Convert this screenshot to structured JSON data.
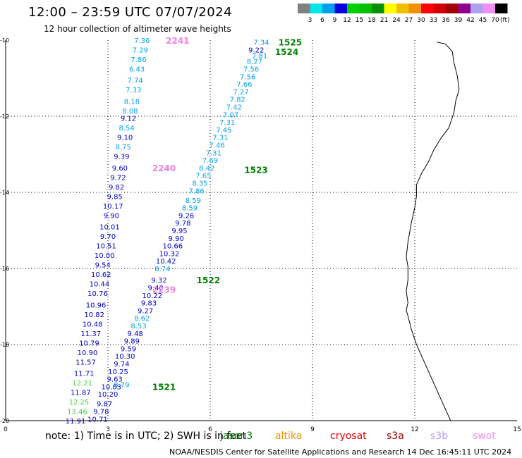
{
  "header": {
    "title": "12:00 – 23:59 UTC 07/07/2024",
    "subtitle": "12 hour collection of altimeter wave heights"
  },
  "colorbar": {
    "unit": "(ft)",
    "levels": [
      {
        "label": "3",
        "color": "#808080"
      },
      {
        "label": "6",
        "color": "#00e6e6"
      },
      {
        "label": "9",
        "color": "#00a0f0"
      },
      {
        "label": "12",
        "color": "#0000e0"
      },
      {
        "label": "15",
        "color": "#00d000"
      },
      {
        "label": "18",
        "color": "#00c000"
      },
      {
        "label": "21",
        "color": "#009000"
      },
      {
        "label": "24",
        "color": "#ffff00"
      },
      {
        "label": "27",
        "color": "#f0c000"
      },
      {
        "label": "30",
        "color": "#f09000"
      },
      {
        "label": "33",
        "color": "#ff0000"
      },
      {
        "label": "36",
        "color": "#d00000"
      },
      {
        "label": "39",
        "color": "#a00000"
      },
      {
        "label": "42",
        "color": "#900090"
      },
      {
        "label": "45",
        "color": "#b0a0f0"
      },
      {
        "label": "70",
        "color": "#f090f0"
      },
      {
        "label": "",
        "color": "#000000"
      }
    ]
  },
  "map": {
    "x_range": [
      0,
      15
    ],
    "y_range": [
      -20,
      -10
    ],
    "x_ticks": [
      "0",
      "3",
      "6",
      "9",
      "12",
      "15"
    ],
    "y_ticks": [
      "-10",
      "-12",
      "-14",
      "-16",
      "-18",
      "-20"
    ],
    "grid": "dotted"
  },
  "track_labels": [
    {
      "text": "2241",
      "x": 4.7,
      "y": -10.0,
      "color": "#f080e0"
    },
    {
      "text": "2240",
      "x": 4.3,
      "y": -13.35,
      "color": "#f080e0"
    },
    {
      "text": "2239",
      "x": 4.3,
      "y": -16.55,
      "color": "#f080e0"
    },
    {
      "text": "1525",
      "x": 8.0,
      "y": -10.05,
      "color": "#008000"
    },
    {
      "text": "1524",
      "x": 7.9,
      "y": -10.3,
      "color": "#008000"
    },
    {
      "text": "1523",
      "x": 7.0,
      "y": -13.4,
      "color": "#008000"
    },
    {
      "text": "1522",
      "x": 5.6,
      "y": -16.3,
      "color": "#008000"
    },
    {
      "text": "1521",
      "x": 4.3,
      "y": -19.1,
      "color": "#008000"
    }
  ],
  "tracks": [
    {
      "color_key": "west",
      "points": [
        {
          "x": 4.0,
          "y": -10.0,
          "v": "7.36",
          "c": "#00a0f0"
        },
        {
          "x": 3.95,
          "y": -10.25,
          "v": "7.29",
          "c": "#00a0f0"
        },
        {
          "x": 3.9,
          "y": -10.5,
          "v": "7.86",
          "c": "#00a0f0"
        },
        {
          "x": 3.85,
          "y": -10.75,
          "v": "6.43",
          "c": "#00a0f0"
        },
        {
          "x": 3.8,
          "y": -11.05,
          "v": "7.74",
          "c": "#00a0f0"
        },
        {
          "x": 3.75,
          "y": -11.3,
          "v": "7.33",
          "c": "#00a0f0"
        },
        {
          "x": 3.7,
          "y": -11.6,
          "v": "8.18",
          "c": "#00a0f0"
        },
        {
          "x": 3.65,
          "y": -11.85,
          "v": "8.08",
          "c": "#00a0f0"
        },
        {
          "x": 3.6,
          "y": -12.05,
          "v": "9.12",
          "c": "#0000c0"
        },
        {
          "x": 3.55,
          "y": -12.3,
          "v": "8.54",
          "c": "#00a0f0"
        },
        {
          "x": 3.5,
          "y": -12.55,
          "v": "9.10",
          "c": "#0000c0"
        },
        {
          "x": 3.45,
          "y": -12.8,
          "v": "8.75",
          "c": "#00a0f0"
        },
        {
          "x": 3.4,
          "y": -13.05,
          "v": "9.39",
          "c": "#0000c0"
        },
        {
          "x": 3.35,
          "y": -13.35,
          "v": "9.60",
          "c": "#0000c0"
        },
        {
          "x": 3.3,
          "y": -13.6,
          "v": "9.72",
          "c": "#0000c0"
        },
        {
          "x": 3.25,
          "y": -13.85,
          "v": "9.82",
          "c": "#0000c0"
        },
        {
          "x": 3.2,
          "y": -14.1,
          "v": "9.85",
          "c": "#0000c0"
        },
        {
          "x": 3.15,
          "y": -14.35,
          "v": "10.17",
          "c": "#0000c0"
        },
        {
          "x": 3.1,
          "y": -14.6,
          "v": "9.90",
          "c": "#0000c0"
        },
        {
          "x": 3.05,
          "y": -14.9,
          "v": "10.01",
          "c": "#0000c0"
        },
        {
          "x": 3.0,
          "y": -15.15,
          "v": "9.70",
          "c": "#0000c0"
        },
        {
          "x": 2.95,
          "y": -15.4,
          "v": "10.51",
          "c": "#0000c0"
        },
        {
          "x": 2.9,
          "y": -15.65,
          "v": "10.00",
          "c": "#0000c0"
        },
        {
          "x": 2.85,
          "y": -15.9,
          "v": "9.54",
          "c": "#0000c0"
        },
        {
          "x": 2.8,
          "y": -16.15,
          "v": "10.62",
          "c": "#0000c0"
        },
        {
          "x": 2.75,
          "y": -16.4,
          "v": "10.44",
          "c": "#0000c0"
        },
        {
          "x": 2.7,
          "y": -16.65,
          "v": "10.76",
          "c": "#0000c0"
        },
        {
          "x": 2.65,
          "y": -16.95,
          "v": "10.96",
          "c": "#0000c0"
        },
        {
          "x": 2.6,
          "y": -17.2,
          "v": "10.82",
          "c": "#0000c0"
        },
        {
          "x": 2.55,
          "y": -17.45,
          "v": "10.48",
          "c": "#0000c0"
        },
        {
          "x": 2.5,
          "y": -17.7,
          "v": "11.37",
          "c": "#0000c0"
        },
        {
          "x": 2.45,
          "y": -17.95,
          "v": "10.79",
          "c": "#0000c0"
        },
        {
          "x": 2.4,
          "y": -18.2,
          "v": "10.90",
          "c": "#0000c0"
        },
        {
          "x": 2.35,
          "y": -18.45,
          "v": "11.57",
          "c": "#0000c0"
        },
        {
          "x": 2.3,
          "y": -18.75,
          "v": "11.71",
          "c": "#0000c0"
        },
        {
          "x": 2.25,
          "y": -19.0,
          "v": "12.21",
          "c": "#40d040"
        },
        {
          "x": 2.2,
          "y": -19.25,
          "v": "11.87",
          "c": "#0000c0"
        },
        {
          "x": 2.15,
          "y": -19.5,
          "v": "12.25",
          "c": "#40d040"
        },
        {
          "x": 2.1,
          "y": -19.75,
          "v": "13.46",
          "c": "#40d040"
        },
        {
          "x": 2.05,
          "y": -20.0,
          "v": "11.91",
          "c": "#0000c0"
        }
      ]
    },
    {
      "color_key": "east",
      "points": [
        {
          "x": 7.5,
          "y": -10.05,
          "v": "7.34",
          "c": "#00a0f0"
        },
        {
          "x": 7.35,
          "y": -10.25,
          "v": "9.22",
          "c": "#0000c0"
        },
        {
          "x": 7.45,
          "y": -10.4,
          "v": "7.81",
          "c": "#00a0f0"
        },
        {
          "x": 7.3,
          "y": -10.55,
          "v": "8.27",
          "c": "#00a0f0"
        },
        {
          "x": 7.2,
          "y": -10.75,
          "v": "7.56",
          "c": "#00a0f0"
        },
        {
          "x": 7.1,
          "y": -10.95,
          "v": "7.56",
          "c": "#00a0f0"
        },
        {
          "x": 7.0,
          "y": -11.15,
          "v": "7.66",
          "c": "#00a0f0"
        },
        {
          "x": 6.9,
          "y": -11.35,
          "v": "7.27",
          "c": "#00a0f0"
        },
        {
          "x": 6.8,
          "y": -11.55,
          "v": "7.82",
          "c": "#00a0f0"
        },
        {
          "x": 6.7,
          "y": -11.75,
          "v": "7.42",
          "c": "#00a0f0"
        },
        {
          "x": 6.6,
          "y": -11.95,
          "v": "7.07",
          "c": "#00a0f0"
        },
        {
          "x": 6.5,
          "y": -12.15,
          "v": "7.31",
          "c": "#00a0f0"
        },
        {
          "x": 6.4,
          "y": -12.35,
          "v": "7.45",
          "c": "#00a0f0"
        },
        {
          "x": 6.3,
          "y": -12.55,
          "v": "7.31",
          "c": "#00a0f0"
        },
        {
          "x": 6.2,
          "y": -12.75,
          "v": "7.46",
          "c": "#00a0f0"
        },
        {
          "x": 6.1,
          "y": -12.95,
          "v": "7.31",
          "c": "#00a0f0"
        },
        {
          "x": 6.0,
          "y": -13.15,
          "v": "7.69",
          "c": "#00a0f0"
        },
        {
          "x": 5.9,
          "y": -13.35,
          "v": "8.42",
          "c": "#00a0f0"
        },
        {
          "x": 5.8,
          "y": -13.55,
          "v": "7.65",
          "c": "#00a0f0"
        },
        {
          "x": 5.7,
          "y": -13.75,
          "v": "8.35",
          "c": "#00a0f0"
        },
        {
          "x": 5.6,
          "y": -13.95,
          "v": "7.86",
          "c": "#00a0f0"
        },
        {
          "x": 5.5,
          "y": -14.2,
          "v": "8.59",
          "c": "#00a0f0"
        },
        {
          "x": 5.4,
          "y": -14.4,
          "v": "8.59",
          "c": "#00a0f0"
        },
        {
          "x": 5.3,
          "y": -14.6,
          "v": "9.26",
          "c": "#0000c0"
        },
        {
          "x": 5.2,
          "y": -14.8,
          "v": "9.78",
          "c": "#0000c0"
        },
        {
          "x": 5.1,
          "y": -15.0,
          "v": "9.95",
          "c": "#0000c0"
        },
        {
          "x": 5.0,
          "y": -15.2,
          "v": "9.90",
          "c": "#0000c0"
        },
        {
          "x": 4.9,
          "y": -15.4,
          "v": "10.66",
          "c": "#0000c0"
        },
        {
          "x": 4.8,
          "y": -15.6,
          "v": "10.32",
          "c": "#0000c0"
        },
        {
          "x": 4.7,
          "y": -15.8,
          "v": "10.42",
          "c": "#0000c0"
        },
        {
          "x": 4.6,
          "y": -16.0,
          "v": "8.74",
          "c": "#00a0f0"
        },
        {
          "x": 4.5,
          "y": -16.3,
          "v": "9.32",
          "c": "#0000c0"
        },
        {
          "x": 4.4,
          "y": -16.5,
          "v": "9.40",
          "c": "#0000c0"
        },
        {
          "x": 4.3,
          "y": -16.7,
          "v": "10.22",
          "c": "#0000c0"
        },
        {
          "x": 4.2,
          "y": -16.9,
          "v": "9.83",
          "c": "#0000c0"
        },
        {
          "x": 4.1,
          "y": -17.1,
          "v": "9.27",
          "c": "#0000c0"
        },
        {
          "x": 4.0,
          "y": -17.3,
          "v": "8.62",
          "c": "#00a0f0"
        },
        {
          "x": 3.9,
          "y": -17.5,
          "v": "8.53",
          "c": "#00a0f0"
        },
        {
          "x": 3.8,
          "y": -17.7,
          "v": "9.48",
          "c": "#0000c0"
        },
        {
          "x": 3.7,
          "y": -17.9,
          "v": "9.89",
          "c": "#0000c0"
        },
        {
          "x": 3.6,
          "y": -18.1,
          "v": "9.59",
          "c": "#0000c0"
        },
        {
          "x": 3.5,
          "y": -18.3,
          "v": "10.30",
          "c": "#0000c0"
        },
        {
          "x": 3.4,
          "y": -18.5,
          "v": "9.74",
          "c": "#0000c0"
        },
        {
          "x": 3.3,
          "y": -18.7,
          "v": "10.25",
          "c": "#0000c0"
        },
        {
          "x": 3.2,
          "y": -18.9,
          "v": "9.63",
          "c": "#0000c0"
        },
        {
          "x": 3.4,
          "y": -19.05,
          "v": "8.79",
          "c": "#00a0f0"
        },
        {
          "x": 3.1,
          "y": -19.1,
          "v": "10.03",
          "c": "#0000c0"
        },
        {
          "x": 3.0,
          "y": -19.3,
          "v": "10.20",
          "c": "#0000c0"
        },
        {
          "x": 2.9,
          "y": -19.55,
          "v": "9.87",
          "c": "#0000c0"
        },
        {
          "x": 2.8,
          "y": -19.75,
          "v": "9.78",
          "c": "#0000c0"
        },
        {
          "x": 2.7,
          "y": -19.95,
          "v": "10.71",
          "c": "#0000c0"
        }
      ]
    }
  ],
  "note": "note: 1) Time is in UTC; 2) SWH is in feet",
  "satellites": [
    {
      "name": "jason3",
      "color": "#008000"
    },
    {
      "name": "altika",
      "color": "#f09000"
    },
    {
      "name": "cryosat",
      "color": "#e00000"
    },
    {
      "name": "s3a",
      "color": "#a00000"
    },
    {
      "name": "s3b",
      "color": "#b0a0f0"
    },
    {
      "name": "swot",
      "color": "#f090f0"
    }
  ],
  "footer": "NOAA/NESDIS Center for Satellite Applications and Research    14 Dec 16:45:11 UTC 2024"
}
